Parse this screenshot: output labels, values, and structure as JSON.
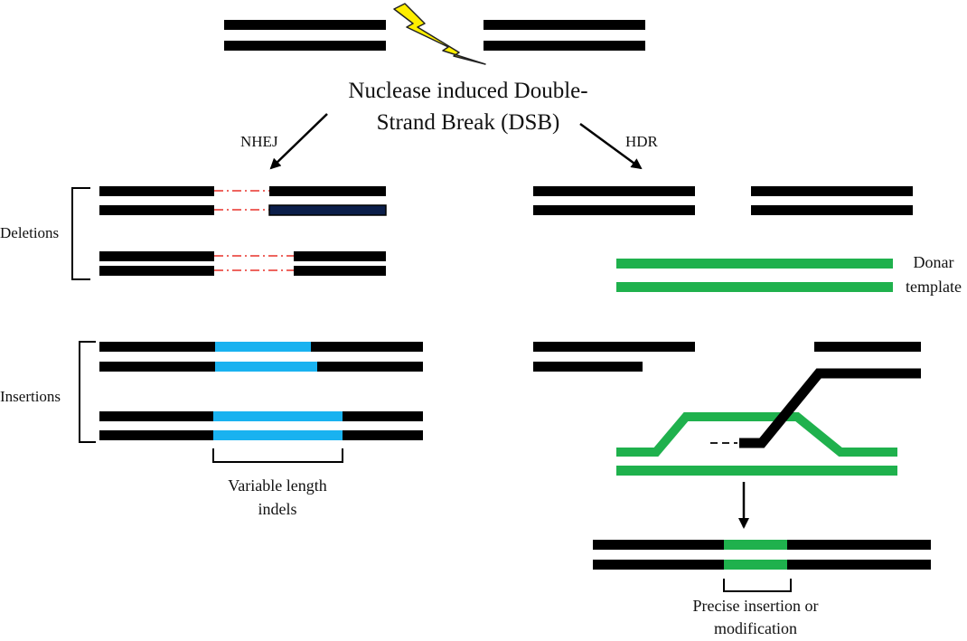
{
  "title": {
    "line1": "Nuclease induced Double-",
    "line2": "Strand Break (DSB)"
  },
  "pathways": {
    "left": "NHEJ",
    "right": "HDR"
  },
  "nhej": {
    "deletions_label": "Deletions",
    "insertions_label": "Insertions",
    "indel_note_line1": "Variable length",
    "indel_note_line2": "indels"
  },
  "hdr": {
    "donor_label_line1": "Donar",
    "donor_label_line2": "template",
    "result_note_line1": "Precise insertion or",
    "result_note_line2": "modification"
  },
  "icons": {
    "break": "lightning-bolt-icon"
  },
  "colors": {
    "dna": "#000000",
    "dna_dark_blue": "#0b1e4a",
    "deletion_gap": "#e8322a",
    "insertion": "#19b2f0",
    "donor": "#1fb14d",
    "lightning": "#ffee00"
  }
}
